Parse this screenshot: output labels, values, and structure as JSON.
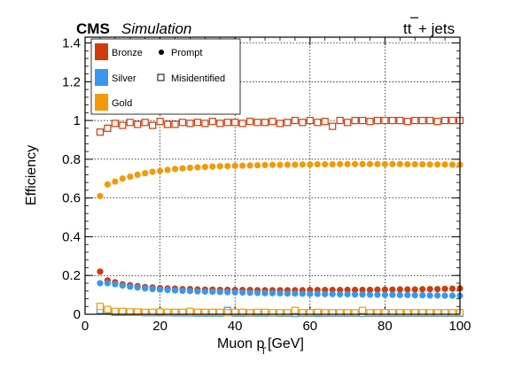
{
  "header": {
    "experiment": "CMS",
    "label": "Simulation",
    "process_tt": "tt",
    "process_rest": " + jets"
  },
  "legend": {
    "entries": [
      {
        "label": "Bronze",
        "color": "#d13b0a"
      },
      {
        "label": "Silver",
        "color": "#3a97f0"
      },
      {
        "label": "Gold",
        "color": "#f39a0b"
      }
    ],
    "marker_prompt": "Prompt",
    "marker_misid": "Misidentified"
  },
  "chart_data": {
    "type": "scatter",
    "xlabel_main": "Muon p",
    "xlabel_sub": "T",
    "xlabel_unit": " [GeV]",
    "ylabel": "Efficiency",
    "xlim": [
      0,
      100
    ],
    "ylim": [
      0,
      1.43
    ],
    "grid": true,
    "legend_position": "top-left",
    "x_ticks": [
      0,
      20,
      40,
      60,
      80,
      100
    ],
    "x_tick_labels": [
      "0",
      "20",
      "40",
      "60",
      "80",
      "100"
    ],
    "y_ticks": [
      0,
      0.2,
      0.4,
      0.6,
      0.8,
      1,
      1.2,
      1.4
    ],
    "y_tick_labels": [
      "0",
      "0.2",
      "0.4",
      "0.6",
      "0.8",
      "1",
      "1.2",
      "1.4"
    ],
    "x": [
      4,
      6,
      8,
      10,
      12,
      14,
      16,
      18,
      20,
      22,
      24,
      26,
      28,
      30,
      32,
      34,
      36,
      38,
      40,
      42,
      44,
      46,
      48,
      50,
      52,
      54,
      56,
      58,
      60,
      62,
      64,
      66,
      68,
      70,
      72,
      74,
      76,
      78,
      80,
      82,
      84,
      86,
      88,
      90,
      92,
      94,
      96,
      98,
      100
    ],
    "series": [
      {
        "name": "Bronze",
        "kind": "Prompt",
        "color": "#d13b0a",
        "values": [
          0.22,
          0.175,
          0.165,
          0.155,
          0.15,
          0.145,
          0.14,
          0.138,
          0.135,
          0.133,
          0.132,
          0.13,
          0.13,
          0.128,
          0.127,
          0.127,
          0.126,
          0.126,
          0.125,
          0.125,
          0.125,
          0.124,
          0.124,
          0.124,
          0.124,
          0.124,
          0.124,
          0.124,
          0.125,
          0.125,
          0.125,
          0.125,
          0.125,
          0.126,
          0.126,
          0.126,
          0.126,
          0.127,
          0.127,
          0.127,
          0.128,
          0.128,
          0.128,
          0.129,
          0.13,
          0.13,
          0.131,
          0.132,
          0.133
        ]
      },
      {
        "name": "Silver",
        "kind": "Prompt",
        "color": "#3a97f0",
        "values": [
          0.16,
          0.16,
          0.155,
          0.148,
          0.142,
          0.138,
          0.133,
          0.13,
          0.127,
          0.125,
          0.123,
          0.121,
          0.12,
          0.118,
          0.117,
          0.116,
          0.115,
          0.114,
          0.113,
          0.112,
          0.111,
          0.11,
          0.109,
          0.109,
          0.108,
          0.107,
          0.107,
          0.106,
          0.105,
          0.105,
          0.104,
          0.104,
          0.103,
          0.103,
          0.102,
          0.102,
          0.101,
          0.101,
          0.1,
          0.1,
          0.099,
          0.099,
          0.098,
          0.098,
          0.097,
          0.097,
          0.096,
          0.096,
          0.096
        ]
      },
      {
        "name": "Gold",
        "kind": "Prompt",
        "color": "#f39a0b",
        "values": [
          0.61,
          0.67,
          0.685,
          0.7,
          0.71,
          0.72,
          0.728,
          0.735,
          0.74,
          0.745,
          0.75,
          0.753,
          0.756,
          0.758,
          0.76,
          0.762,
          0.764,
          0.765,
          0.766,
          0.767,
          0.768,
          0.769,
          0.77,
          0.771,
          0.771,
          0.772,
          0.772,
          0.773,
          0.773,
          0.774,
          0.774,
          0.774,
          0.775,
          0.775,
          0.775,
          0.775,
          0.775,
          0.775,
          0.775,
          0.775,
          0.775,
          0.774,
          0.774,
          0.774,
          0.773,
          0.773,
          0.773,
          0.772,
          0.772
        ]
      },
      {
        "name": "Bronze",
        "kind": "Misidentified",
        "color": "#d13b0a",
        "values": [
          0.94,
          0.96,
          0.985,
          0.975,
          0.99,
          0.98,
          0.99,
          0.975,
          0.995,
          0.98,
          0.98,
          0.99,
          0.985,
          0.99,
          0.985,
          0.995,
          0.985,
          0.99,
          0.99,
          0.985,
          0.995,
          0.99,
          0.99,
          0.995,
          0.985,
          0.99,
          1.0,
          0.99,
          1.0,
          0.99,
          0.995,
          0.97,
          1.0,
          0.99,
          1.0,
          1.0,
          0.995,
          1.0,
          1.0,
          1.0,
          1.0,
          0.995,
          1.0,
          1.0,
          1.0,
          0.995,
          1.0,
          1.0,
          1.0
        ]
      },
      {
        "name": "Silver",
        "kind": "Misidentified",
        "color": "#3a97f0",
        "values": [
          0.02,
          0.02,
          0.01,
          0.01,
          0.01,
          0.01,
          0.008,
          0.008,
          0.008,
          0.008,
          0.007,
          0.007,
          0.007,
          0.006,
          0.006,
          0.006,
          0.006,
          0.02,
          0.006,
          0.006,
          0.006,
          0.006,
          0.006,
          0.006,
          0.005,
          0.005,
          0.005,
          0.005,
          0.005,
          0.005,
          0.005,
          0.005,
          0.005,
          0.005,
          0.005,
          0.005,
          0.005,
          0.005,
          0.005,
          0.005,
          0.005,
          0.005,
          0.005,
          0.005,
          0.005,
          0.005,
          0.005,
          0.005,
          0.005
        ]
      },
      {
        "name": "Gold",
        "kind": "Misidentified",
        "color": "#f39a0b",
        "values": [
          0.04,
          0.025,
          0.015,
          0.015,
          0.012,
          0.012,
          0.01,
          0.01,
          0.012,
          0.01,
          0.01,
          0.01,
          0.015,
          0.01,
          0.01,
          0.01,
          0.01,
          0.008,
          0.01,
          0.01,
          0.008,
          0.01,
          0.01,
          0.008,
          0.008,
          0.008,
          0.02,
          0.008,
          0.008,
          0.01,
          0.008,
          0.008,
          0.008,
          0.008,
          0.008,
          0.02,
          0.008,
          0.008,
          0.008,
          0.008,
          0.008,
          0.008,
          0.008,
          0.008,
          0.008,
          0.008,
          0.008,
          0.008,
          0.008
        ]
      }
    ]
  }
}
